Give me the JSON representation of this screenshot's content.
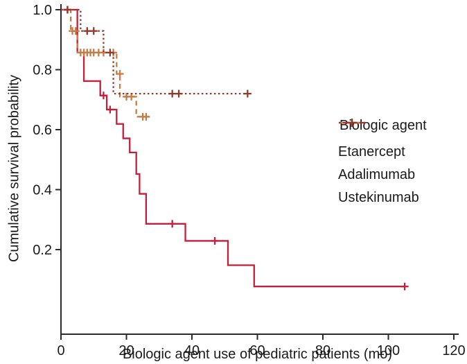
{
  "figure": {
    "background": "#ffffff",
    "text_color": "#1a1a1a",
    "axis_color": "#2a2a2a"
  },
  "legend": {
    "title": "Biologic agent"
  },
  "chart_data": {
    "type": "line",
    "subtype": "kaplan_meier_step",
    "title": "",
    "xlabel": "Biologic agent use of pediatric patients (mo)",
    "ylabel": "Cumulative survival probability",
    "xlim": [
      0,
      120
    ],
    "ylim": [
      0,
      1.0
    ],
    "xticks": [
      0,
      20,
      40,
      60,
      80,
      100,
      120
    ],
    "yticks": [
      0.2,
      0.4,
      0.6,
      0.8,
      1.0
    ],
    "grid": false,
    "legend_position": "right-middle",
    "legend_title": "Biologic agent",
    "series": [
      {
        "name": "Etanercept",
        "color": "#c41f3a",
        "line_style": "solid",
        "path": [
          [
            0,
            1.0
          ],
          [
            5,
            1.0
          ],
          [
            5,
            0.857
          ],
          [
            7,
            0.857
          ],
          [
            7,
            0.762
          ],
          [
            12,
            0.762
          ],
          [
            12,
            0.714
          ],
          [
            14,
            0.714
          ],
          [
            14,
            0.667
          ],
          [
            17,
            0.667
          ],
          [
            17,
            0.619
          ],
          [
            19,
            0.619
          ],
          [
            19,
            0.571
          ],
          [
            21,
            0.571
          ],
          [
            21,
            0.524
          ],
          [
            23,
            0.524
          ],
          [
            23,
            0.452
          ],
          [
            24,
            0.452
          ],
          [
            24,
            0.386
          ],
          [
            26,
            0.386
          ],
          [
            26,
            0.286
          ],
          [
            38,
            0.286
          ],
          [
            38,
            0.229
          ],
          [
            51,
            0.229
          ],
          [
            51,
            0.148
          ],
          [
            59,
            0.148
          ],
          [
            59,
            0.077
          ],
          [
            105,
            0.077
          ]
        ],
        "censors": [
          [
            2,
            1.0
          ],
          [
            13,
            0.714
          ],
          [
            15,
            0.667
          ],
          [
            34,
            0.286
          ],
          [
            47,
            0.229
          ],
          [
            105,
            0.077
          ]
        ]
      },
      {
        "name": "Adalimumab",
        "color": "#c87a45",
        "line_style": "dashed",
        "path": [
          [
            0,
            1.0
          ],
          [
            3,
            1.0
          ],
          [
            3,
            0.929
          ],
          [
            5,
            0.929
          ],
          [
            5,
            0.857
          ],
          [
            17,
            0.857
          ],
          [
            17,
            0.786
          ],
          [
            18,
            0.786
          ],
          [
            18,
            0.71
          ],
          [
            23,
            0.71
          ],
          [
            23,
            0.643
          ],
          [
            27,
            0.643
          ]
        ],
        "censors": [
          [
            3.5,
            0.929
          ],
          [
            4.5,
            0.929
          ],
          [
            6,
            0.857
          ],
          [
            7,
            0.857
          ],
          [
            8,
            0.857
          ],
          [
            9,
            0.857
          ],
          [
            10,
            0.857
          ],
          [
            11.5,
            0.857
          ],
          [
            13,
            0.857
          ],
          [
            16,
            0.857
          ],
          [
            18,
            0.786
          ],
          [
            20,
            0.71
          ],
          [
            21.5,
            0.71
          ],
          [
            25,
            0.643
          ],
          [
            26,
            0.643
          ]
        ]
      },
      {
        "name": "Ustekinumab",
        "color": "#8e3b2e",
        "line_style": "dotted",
        "path": [
          [
            0,
            1.0
          ],
          [
            6,
            1.0
          ],
          [
            6,
            0.929
          ],
          [
            13,
            0.929
          ],
          [
            13,
            0.857
          ],
          [
            16,
            0.857
          ],
          [
            16,
            0.72
          ],
          [
            57,
            0.72
          ]
        ],
        "censors": [
          [
            2,
            1.0
          ],
          [
            8,
            0.929
          ],
          [
            10,
            0.929
          ],
          [
            15,
            0.857
          ],
          [
            34,
            0.72
          ],
          [
            36,
            0.72
          ],
          [
            57,
            0.72
          ]
        ]
      }
    ]
  }
}
